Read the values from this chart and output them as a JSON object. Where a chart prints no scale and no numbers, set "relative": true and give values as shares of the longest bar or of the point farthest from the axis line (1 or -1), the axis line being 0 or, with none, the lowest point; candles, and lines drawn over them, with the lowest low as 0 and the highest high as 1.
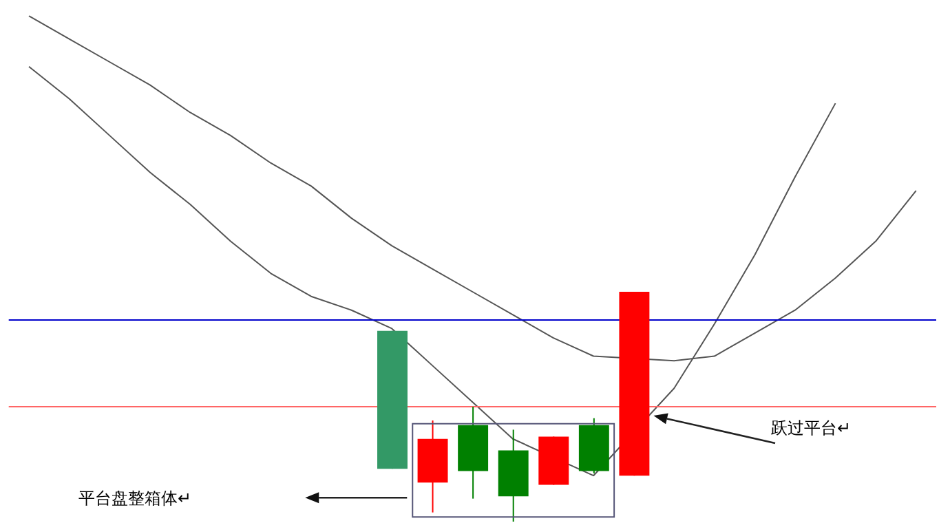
{
  "chart_data": [
    {
      "type": "line",
      "relative": true,
      "marker": "none",
      "categories": [
        null,
        null,
        null,
        null,
        null,
        null,
        null,
        null,
        null,
        null,
        null,
        null,
        null,
        null,
        null,
        null,
        null,
        null,
        null,
        null,
        null,
        null,
        null
      ],
      "series": [
        {
          "color": "#555555",
          "values": [
            0.89,
            0.82,
            0.74,
            0.66,
            0.59,
            0.51,
            0.44,
            0.39,
            0.36,
            0.32,
            0.24,
            0.16,
            0.08,
            null,
            0,
            null,
            0.19,
            0.33,
            0.48,
            0.65,
            0.81,
            null,
            null
          ]
        },
        {
          "color": "#555555",
          "values": [
            1,
            0.95,
            0.9,
            0.85,
            0.79,
            0.74,
            0.68,
            0.63,
            0.56,
            0.5,
            0.45,
            0.4,
            0.35,
            0.3,
            0.26,
            null,
            0.25,
            0.26,
            0.31,
            0.36,
            0.43,
            0.51,
            0.62
          ]
        }
      ],
      "ref_lines": [
        {
          "axis": "y",
          "value": 0.34,
          "color": "#0000cc"
        },
        {
          "axis": "y",
          "value": 0.15,
          "color": "#ff6666"
        }
      ]
    },
    {
      "type": "candlestick",
      "relative": true,
      "categories": [
        null,
        null,
        null,
        null,
        null,
        null,
        null
      ],
      "ohlc": [
        [
          0.83,
          0.83,
          0.23,
          0.23
        ],
        [
          0.17,
          0.44,
          0.04,
          0.36
        ],
        [
          0.42,
          0.5,
          0.1,
          0.22
        ],
        [
          0.31,
          0.4,
          0,
          0.11
        ],
        [
          0.16,
          0.37,
          0.16,
          0.37
        ],
        [
          0.42,
          0.45,
          0.21,
          0.22
        ],
        [
          0.2,
          1,
          0.2,
          1
        ]
      ],
      "colors": [
        "#339966",
        "#ff0000",
        "#008000",
        "#008000",
        "#ff0000",
        "#008000",
        "#ff0000"
      ],
      "annotations": [
        "平台盘整箱体↵",
        "跃过平台↵"
      ]
    }
  ]
}
